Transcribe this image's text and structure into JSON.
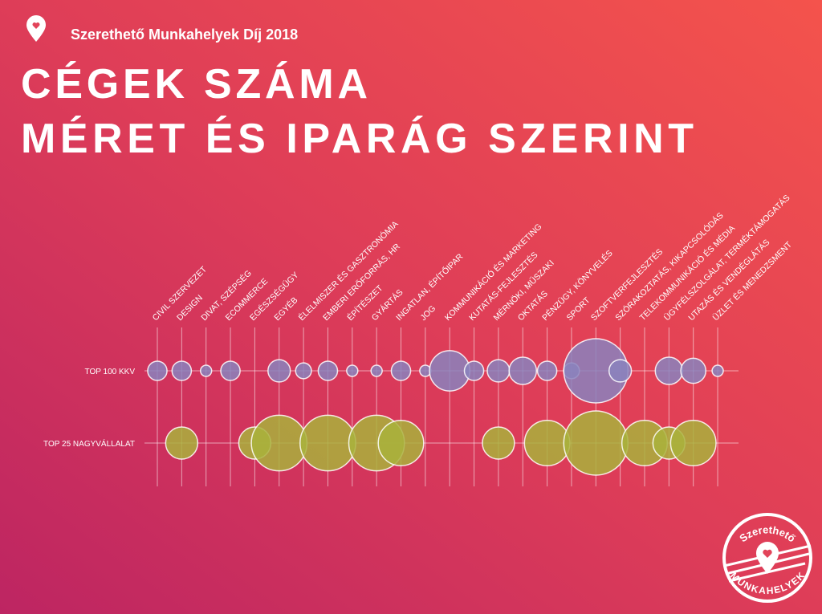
{
  "brand": {
    "header": "Szerethető Munkahelyek Díj 2018",
    "logo_top": "Szerethető",
    "logo_bottom": "MUNKAHELYEK"
  },
  "chart_data": {
    "type": "bubble-matrix",
    "title_lines": [
      "CÉGEK SZÁMA",
      "MÉRET ÉS IPARÁG SZERINT"
    ],
    "categories": [
      "CIVIL SZERVEZET",
      "DESIGN",
      "DIVAT, SZÉPSÉG",
      "ECOMMERCE",
      "EGÉSZSÉGÜGY",
      "EGYÉB",
      "ÉLELMISZER ÉS GASZTRONÓMIA",
      "EMBERI ERŐFORRÁS, HR",
      "ÉPÍTÉSZET",
      "GYÁRTÁS",
      "INGATLAN, ÉPÍTŐIPAR",
      "JOG",
      "KOMMUNIKÁCIÓ ÉS MARKETING",
      "KUTATÁS-FEJLESZTÉS",
      "MÉRNÖKI, MŰSZAKI",
      "OKTATÁS",
      "PÉNZÜGY, KÖNYVELÉS",
      "SPORT",
      "SZOFTVERFEJLESZTÉS",
      "SZÓRAKOZTATÁS, KIKAPCSOLÓDÁS",
      "TELEKOMMUNIKÁCIÓ ÉS MÉDIA",
      "ÜGYFÉLSZOLGÁLAT, TERMÉKTÁMOGATÁS",
      "UTAZÁS ÉS VENDÉGLÁTÁS",
      "ÜZLET ÉS MENEDZSMENT"
    ],
    "series": [
      {
        "name": "TOP 100 KKV",
        "color": "#8a82bd",
        "values": [
          3,
          3,
          1,
          3,
          null,
          4,
          2,
          3,
          1,
          1,
          3,
          1,
          13,
          3,
          4,
          6,
          3,
          2,
          33,
          4,
          null,
          6,
          5,
          1
        ]
      },
      {
        "name": "TOP 25 NAGYVÁLLALAT",
        "color": "#a9b13c",
        "values": [
          null,
          1,
          null,
          null,
          1,
          3,
          null,
          3,
          null,
          3,
          2,
          null,
          null,
          null,
          1,
          null,
          2,
          null,
          4,
          null,
          2,
          1,
          2,
          null
        ]
      }
    ]
  }
}
